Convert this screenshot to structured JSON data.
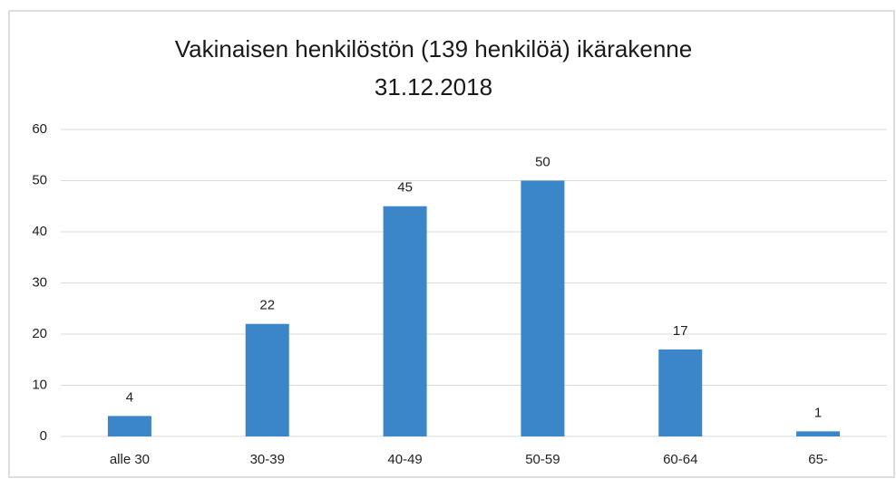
{
  "chart_data": {
    "type": "bar",
    "title": [
      "Vakinaisen henkilöstön (139 henkilöä) ikärakenne",
      "31.12.2018"
    ],
    "categories": [
      "alle 30",
      "30-39",
      "40-49",
      "50-59",
      "60-64",
      "65-"
    ],
    "values": [
      4,
      22,
      45,
      50,
      17,
      1
    ],
    "color": "#3a86c8",
    "ylim": [
      0,
      60
    ],
    "yticks": [
      0,
      10,
      20,
      30,
      40,
      50,
      60
    ],
    "grid": true
  }
}
